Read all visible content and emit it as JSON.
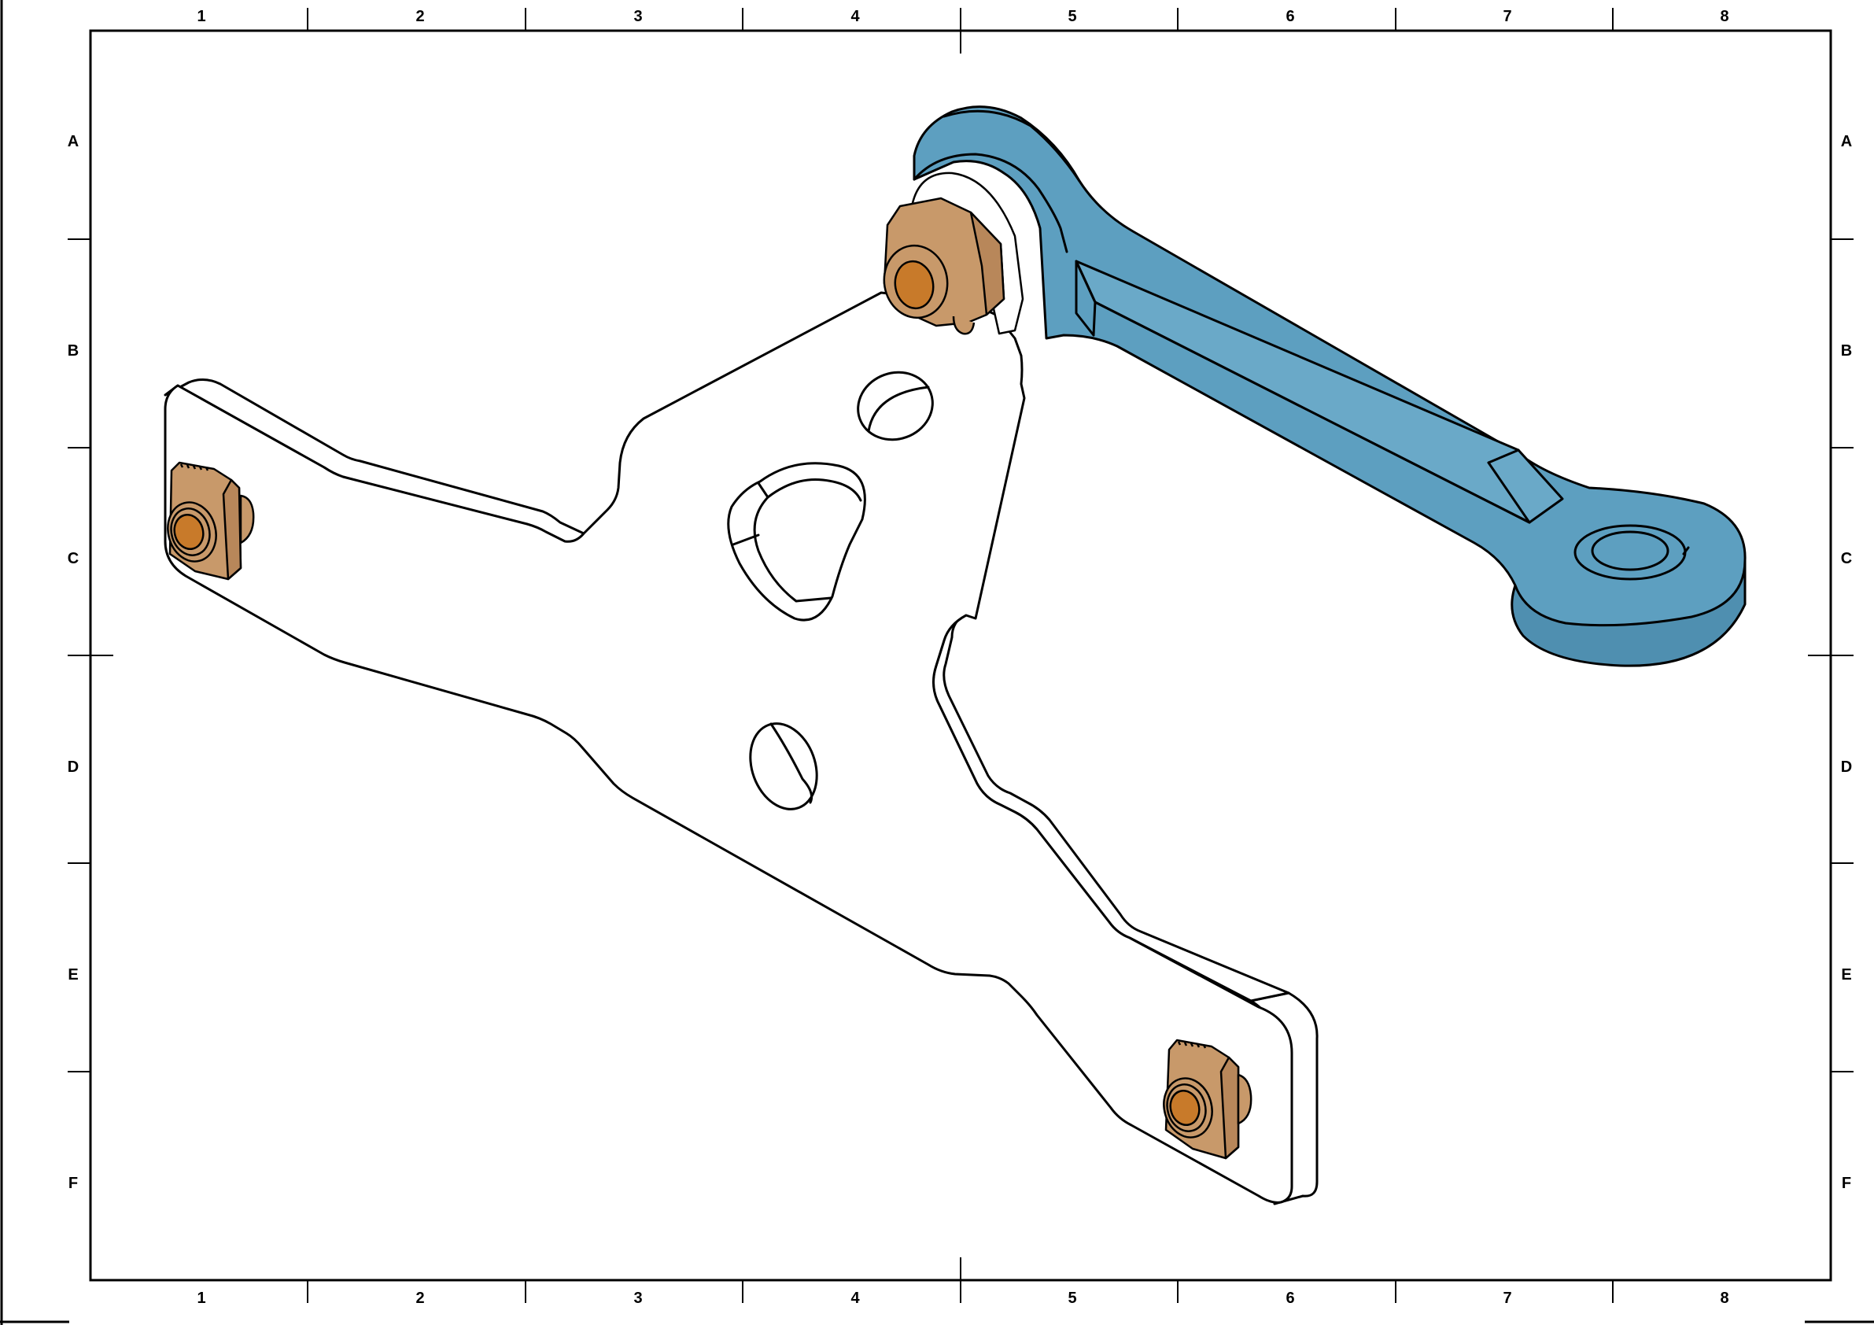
{
  "drawing": {
    "title": "",
    "column_labels": [
      "1",
      "2",
      "3",
      "4",
      "5",
      "6",
      "7",
      "8"
    ],
    "row_labels": [
      "A",
      "B",
      "C",
      "D",
      "E",
      "F"
    ]
  },
  "colors": {
    "line": "#000000",
    "background": "#ffffff",
    "plate": "#ffffff",
    "arm": "#5d9fc0",
    "arm_dark": "#4f8fb0",
    "nut": "#c8996a",
    "nut_dark": "#b8875a",
    "bore": "#c87a2a"
  },
  "parts": [
    {
      "name": "mounting-plate"
    },
    {
      "name": "lever-arm"
    },
    {
      "name": "pivot-nut"
    },
    {
      "name": "t-slot-nut-left"
    },
    {
      "name": "t-slot-nut-right"
    }
  ]
}
